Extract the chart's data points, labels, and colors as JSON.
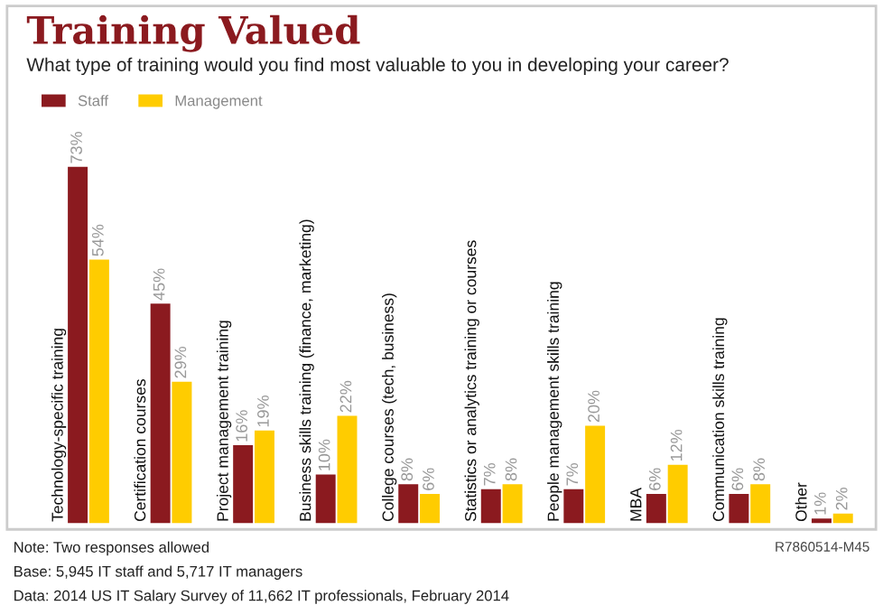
{
  "chart_data": {
    "type": "bar",
    "title": "Training Valued",
    "subtitle": "What type of training would you find most valuable to you in developing your career?",
    "categories": [
      "Technology-specific training",
      "Certification courses",
      "Project management training",
      "Business skills training (finance, marketing)",
      "College courses (tech, business)",
      "Statistics or analytics training or courses",
      "People management skills training",
      "MBA",
      "Communication skills training",
      "Other"
    ],
    "series": [
      {
        "name": "Staff",
        "color": "#8b1a1f",
        "values": [
          73,
          45,
          16,
          10,
          8,
          7,
          7,
          6,
          6,
          1
        ],
        "value_labels": [
          "73%",
          "45%",
          "16%",
          "10%",
          "8%",
          "7%",
          "7%",
          "6%",
          "6%",
          "1%"
        ]
      },
      {
        "name": "Management",
        "color": "#ffcc00",
        "values": [
          54,
          29,
          19,
          22,
          6,
          8,
          20,
          12,
          8,
          2
        ],
        "value_labels": [
          "54%",
          "29%",
          "19%",
          "22%",
          "6%",
          "8%",
          "20%",
          "12%",
          "8%",
          "2%"
        ]
      }
    ],
    "legend": "top left",
    "annotations": [
      "Note: Two responses allowed",
      "Base: 5,945 IT staff and 5,717 IT managers",
      "Data: 2014 US IT Salary Survey of 11,662 IT professionals, February 2014",
      "R7860514-M45"
    ]
  }
}
